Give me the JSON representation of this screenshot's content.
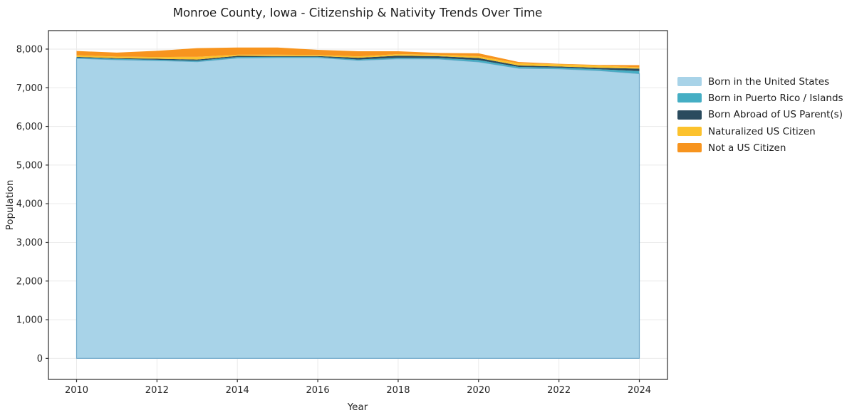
{
  "chart_data": {
    "type": "area",
    "stacked": true,
    "title": "Monroe County, Iowa - Citizenship & Nativity Trends Over Time",
    "xlabel": "Year",
    "ylabel": "Population",
    "x": [
      2010,
      2011,
      2012,
      2013,
      2014,
      2015,
      2016,
      2017,
      2018,
      2019,
      2020,
      2021,
      2022,
      2023,
      2024
    ],
    "series": [
      {
        "name": "Born in the United States",
        "color": "#A8D3E8",
        "edge_color": "#6FA8C9",
        "values": [
          7760,
          7725,
          7705,
          7675,
          7770,
          7780,
          7780,
          7710,
          7750,
          7745,
          7670,
          7505,
          7490,
          7445,
          7365
        ]
      },
      {
        "name": "Born in Puerto Rico / Islands",
        "color": "#45AEC4",
        "values": [
          20,
          20,
          20,
          25,
          25,
          20,
          20,
          20,
          25,
          25,
          45,
          35,
          30,
          35,
          65
        ]
      },
      {
        "name": "Born Abroad of US Parent(s)",
        "color": "#2A4B5E",
        "values": [
          20,
          20,
          25,
          30,
          30,
          20,
          20,
          45,
          55,
          45,
          55,
          35,
          30,
          35,
          65
        ]
      },
      {
        "name": "Naturalized US Citizen",
        "color": "#FCC22D",
        "values": [
          40,
          40,
          45,
          70,
          30,
          35,
          30,
          35,
          40,
          40,
          45,
          55,
          55,
          55,
          35
        ]
      },
      {
        "name": "Not a US Citizen",
        "color": "#F7941E",
        "values": [
          110,
          105,
          160,
          225,
          185,
          185,
          130,
          135,
          75,
          45,
          75,
          35,
          15,
          20,
          55
        ]
      }
    ],
    "xlim": [
      2009.3,
      2024.7
    ],
    "ylim": [
      -545,
      8478
    ],
    "xticks": {
      "values": [
        2010,
        2012,
        2014,
        2016,
        2018,
        2020,
        2022,
        2024
      ],
      "labels": [
        "2010",
        "2012",
        "2014",
        "2016",
        "2018",
        "2020",
        "2022",
        "2024"
      ]
    },
    "yticks": {
      "values": [
        0,
        1000,
        2000,
        3000,
        4000,
        5000,
        6000,
        7000,
        8000
      ],
      "labels": [
        "0",
        "1,000",
        "2,000",
        "3,000",
        "4,000",
        "5,000",
        "6,000",
        "7,000",
        "8,000"
      ]
    },
    "grid": true,
    "legend_position": "right",
    "colors": {
      "grid": "#eaeaea",
      "spine": "#2b2b2b",
      "tick_text": "#262626",
      "background": "#ffffff"
    }
  }
}
